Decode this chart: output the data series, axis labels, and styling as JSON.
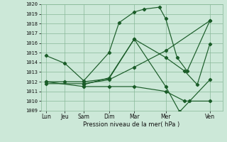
{
  "bg_color": "#cce8d8",
  "grid_color": "#88b898",
  "line_color": "#1a5c28",
  "xlabel": "Pression niveau de la mer( hPa )",
  "ylim": [
    1009,
    1020
  ],
  "yticks": [
    1009,
    1010,
    1011,
    1012,
    1013,
    1014,
    1015,
    1016,
    1017,
    1018,
    1019,
    1020
  ],
  "xtick_labels": [
    "Lun",
    "Jeu",
    "Sam",
    "Dim",
    "Mar",
    "Mer",
    "Ven"
  ],
  "xtick_positions": [
    0,
    0.75,
    1.5,
    2.5,
    3.5,
    4.75,
    6.5
  ],
  "xlim": [
    -0.2,
    7.0
  ],
  "lines": [
    {
      "x": [
        0.0,
        0.75,
        1.5,
        2.5,
        2.9,
        3.5,
        3.9,
        4.5,
        4.75,
        5.2,
        5.6,
        6.5
      ],
      "y": [
        1014.7,
        1013.9,
        1012.1,
        1015.0,
        1018.1,
        1019.2,
        1019.5,
        1019.7,
        1018.5,
        1014.5,
        1013.1,
        1018.3
      ]
    },
    {
      "x": [
        0.0,
        0.75,
        1.5,
        2.5,
        3.5,
        4.75,
        5.3,
        5.7,
        6.5
      ],
      "y": [
        1012.0,
        1012.0,
        1012.0,
        1012.3,
        1016.4,
        1011.5,
        1008.9,
        1010.0,
        1012.2
      ]
    },
    {
      "x": [
        0.0,
        1.5,
        2.5,
        3.5,
        4.75,
        6.5
      ],
      "y": [
        1011.8,
        1011.8,
        1012.2,
        1013.5,
        1015.2,
        1018.3
      ]
    },
    {
      "x": [
        0.0,
        1.5,
        2.5,
        3.5,
        4.75,
        5.5,
        6.5
      ],
      "y": [
        1012.0,
        1011.5,
        1011.5,
        1011.5,
        1011.0,
        1010.0,
        1010.0
      ]
    },
    {
      "x": [
        1.5,
        2.5,
        3.5,
        4.75,
        5.5,
        6.0,
        6.5
      ],
      "y": [
        1011.7,
        1012.4,
        1016.4,
        1014.5,
        1013.1,
        1011.7,
        1015.9
      ]
    }
  ]
}
